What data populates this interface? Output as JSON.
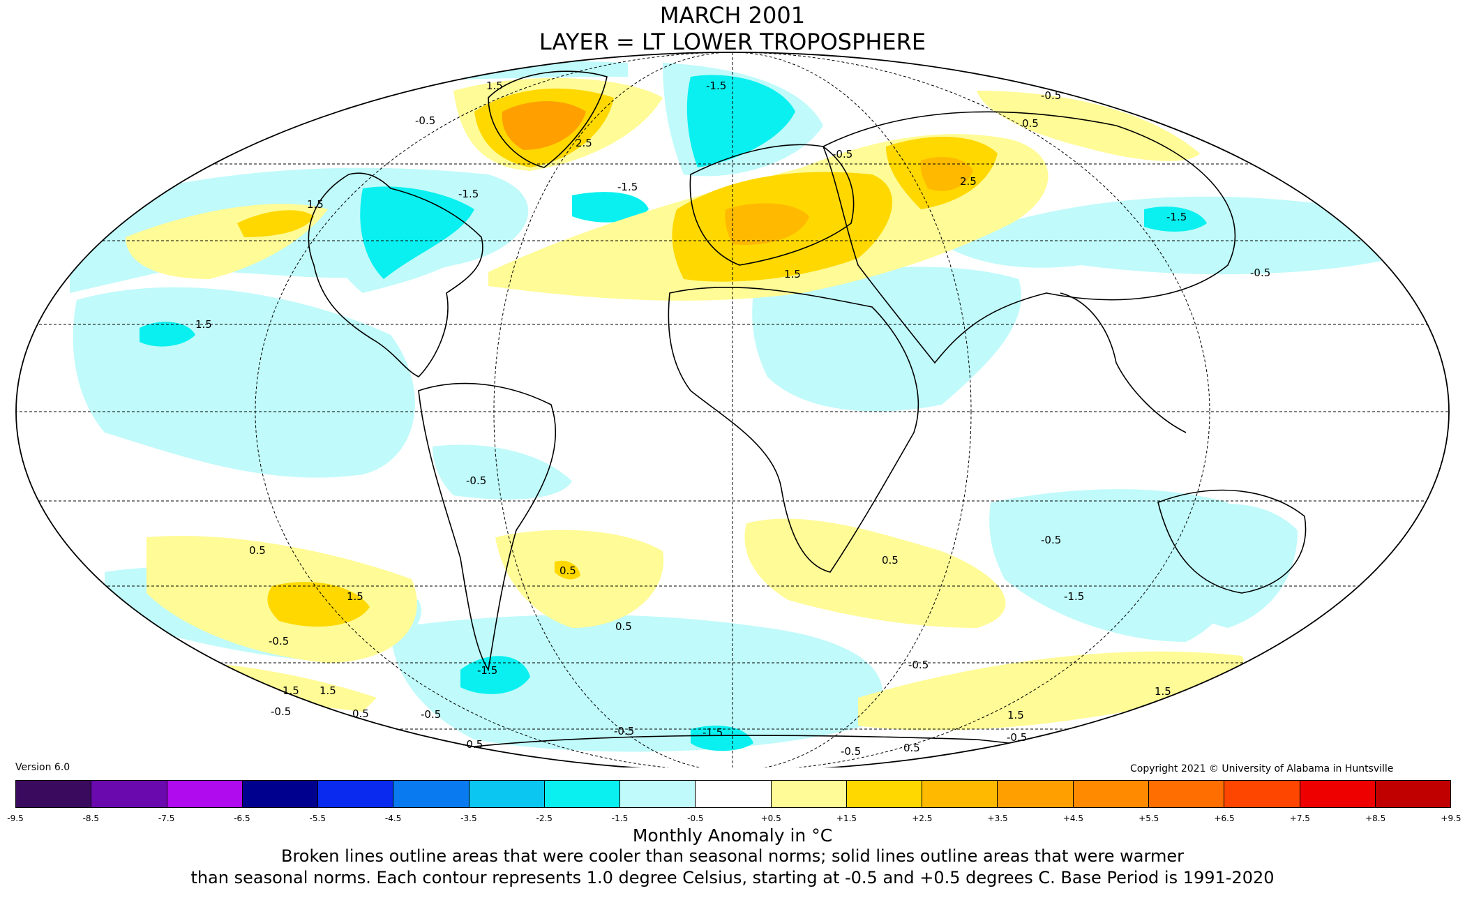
{
  "title": "MARCH 2001",
  "subtitle": "LAYER = LT LOWER TROPOSPHERE",
  "version": "Version 6.0",
  "copyright": "Copyright 2021 © University of Alabama in Huntsville",
  "colorbar": {
    "label": "Monthly Anomaly in °C",
    "ticks": [
      "-9.5",
      "-8.5",
      "-7.5",
      "-6.5",
      "-5.5",
      "-4.5",
      "-3.5",
      "-2.5",
      "-1.5",
      "-0.5",
      "+0.5",
      "+1.5",
      "+2.5",
      "+3.5",
      "+4.5",
      "+5.5",
      "+6.5",
      "+7.5",
      "+8.5",
      "+9.5"
    ],
    "colors": [
      "#3a0a5e",
      "#6a0aae",
      "#b00aee",
      "#00008e",
      "#0a2af0",
      "#0a7af0",
      "#0ac6f0",
      "#0af0f0",
      "#c0fafa",
      "#ffffff",
      "#fffb96",
      "#ffd800",
      "#ffba00",
      "#ffa000",
      "#ff8a00",
      "#ff6e00",
      "#ff4600",
      "#ee0000",
      "#c00000"
    ]
  },
  "caption_line1": "Broken lines outline areas that were cooler than seasonal norms; solid lines outline areas that were warmer",
  "caption_line2": "than seasonal norms. Each contour represents 1.0 degree Celsius, starting at -0.5 and +0.5 degrees C. Base Period is 1991-2020",
  "contour_labels": [
    "1.5",
    "-0.5",
    "2.5",
    "1.5",
    "-1.5",
    "-1.5",
    "-1.5",
    "-0.5",
    "-0.5",
    "0.5",
    "2.5",
    "1.5",
    "-1.5",
    "-0.5",
    "1.5",
    "-0.5",
    "0.5",
    "1.5",
    "-0.5",
    "-1.5",
    "0.5",
    "0.5",
    "0.5",
    "-0.5",
    "1.5",
    "-0.5",
    "1.5",
    "-0.5",
    "0.5",
    "-1.5",
    "-0.5",
    "-0.5",
    "-1.5",
    "-0.5",
    "-0.5",
    "0.5",
    "1.5",
    "-0.5",
    "1.5"
  ]
}
